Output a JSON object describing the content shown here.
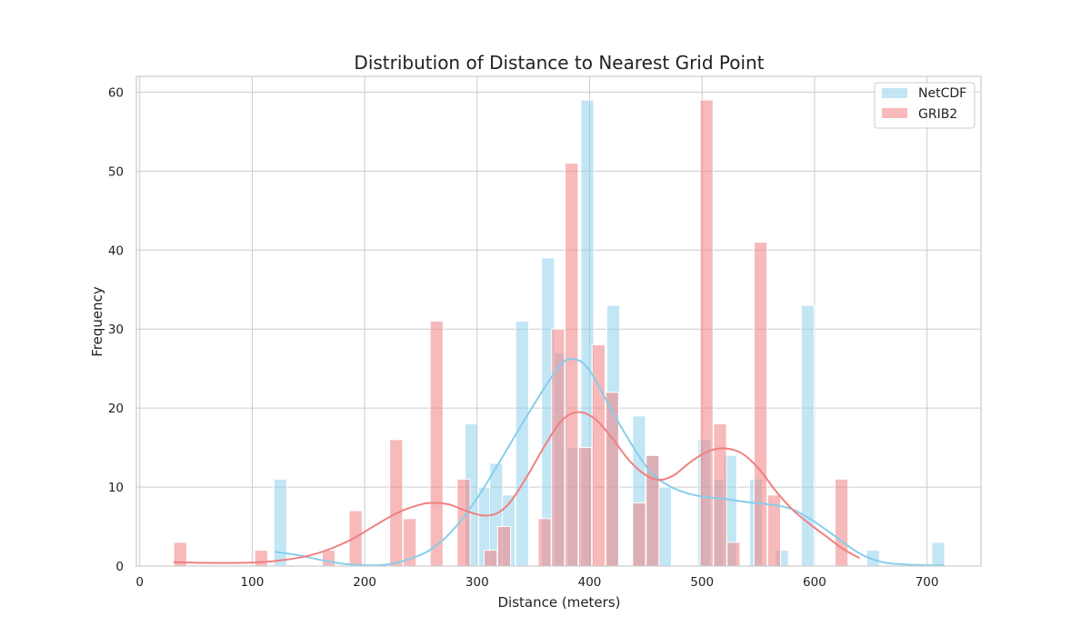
{
  "chart_data": {
    "type": "bar",
    "title": "Distribution of Distance to Nearest Grid Point",
    "xlabel": "Distance (meters)",
    "ylabel": "Frequency",
    "xlim": [
      -3,
      748
    ],
    "ylim": [
      0,
      62
    ],
    "xticks": [
      0,
      100,
      200,
      300,
      400,
      500,
      600,
      700
    ],
    "yticks": [
      0,
      10,
      20,
      30,
      40,
      50,
      60
    ],
    "grid": true,
    "legend_position": "top-right",
    "series": [
      {
        "name": "NetCDF",
        "color": "#87CEEB",
        "bin_width": 11.5,
        "bins": [
          {
            "x": 125,
            "count": 11
          },
          {
            "x": 295,
            "count": 18
          },
          {
            "x": 307,
            "count": 10
          },
          {
            "x": 317,
            "count": 13
          },
          {
            "x": 328,
            "count": 9
          },
          {
            "x": 340,
            "count": 31
          },
          {
            "x": 363,
            "count": 39
          },
          {
            "x": 374,
            "count": 27
          },
          {
            "x": 386,
            "count": 15
          },
          {
            "x": 398,
            "count": 59
          },
          {
            "x": 421,
            "count": 33
          },
          {
            "x": 444,
            "count": 19
          },
          {
            "x": 456,
            "count": 14
          },
          {
            "x": 467,
            "count": 10
          },
          {
            "x": 502,
            "count": 16
          },
          {
            "x": 514,
            "count": 11
          },
          {
            "x": 525,
            "count": 14
          },
          {
            "x": 548,
            "count": 11
          },
          {
            "x": 571,
            "count": 2
          },
          {
            "x": 594,
            "count": 33
          },
          {
            "x": 652,
            "count": 2
          },
          {
            "x": 710,
            "count": 3
          }
        ],
        "kde": [
          [
            120,
            1.8
          ],
          [
            140,
            1.4
          ],
          [
            160,
            0.8
          ],
          [
            180,
            0.3
          ],
          [
            200,
            0.1
          ],
          [
            220,
            0.2
          ],
          [
            240,
            0.9
          ],
          [
            260,
            2.2
          ],
          [
            280,
            4.8
          ],
          [
            300,
            8.6
          ],
          [
            320,
            13.2
          ],
          [
            340,
            18.0
          ],
          [
            360,
            22.6
          ],
          [
            375,
            25.6
          ],
          [
            385,
            26.2
          ],
          [
            395,
            25.6
          ],
          [
            405,
            23.6
          ],
          [
            420,
            19.6
          ],
          [
            440,
            14.8
          ],
          [
            455,
            11.8
          ],
          [
            470,
            10.2
          ],
          [
            485,
            9.3
          ],
          [
            500,
            8.8
          ],
          [
            520,
            8.5
          ],
          [
            540,
            8.1
          ],
          [
            560,
            7.8
          ],
          [
            580,
            7.2
          ],
          [
            600,
            5.6
          ],
          [
            620,
            3.6
          ],
          [
            640,
            1.6
          ],
          [
            660,
            0.5
          ],
          [
            680,
            0.2
          ],
          [
            700,
            0.1
          ],
          [
            715,
            0.1
          ]
        ]
      },
      {
        "name": "GRIB2",
        "color": "#F08080",
        "bin_width": 11.5,
        "bins": [
          {
            "x": 36,
            "count": 3
          },
          {
            "x": 108,
            "count": 2
          },
          {
            "x": 168,
            "count": 2
          },
          {
            "x": 192,
            "count": 7
          },
          {
            "x": 228,
            "count": 16
          },
          {
            "x": 240,
            "count": 6
          },
          {
            "x": 264,
            "count": 31
          },
          {
            "x": 288,
            "count": 11
          },
          {
            "x": 312,
            "count": 2
          },
          {
            "x": 324,
            "count": 5
          },
          {
            "x": 360,
            "count": 6
          },
          {
            "x": 372,
            "count": 30
          },
          {
            "x": 384,
            "count": 51
          },
          {
            "x": 396,
            "count": 15
          },
          {
            "x": 408,
            "count": 28
          },
          {
            "x": 420,
            "count": 22
          },
          {
            "x": 444,
            "count": 8
          },
          {
            "x": 456,
            "count": 14
          },
          {
            "x": 504,
            "count": 59
          },
          {
            "x": 516,
            "count": 18
          },
          {
            "x": 528,
            "count": 3
          },
          {
            "x": 552,
            "count": 41
          },
          {
            "x": 564,
            "count": 9
          },
          {
            "x": 624,
            "count": 11
          }
        ],
        "kde": [
          [
            30,
            0.5
          ],
          [
            60,
            0.4
          ],
          [
            90,
            0.4
          ],
          [
            110,
            0.5
          ],
          [
            130,
            0.8
          ],
          [
            150,
            1.3
          ],
          [
            170,
            2.2
          ],
          [
            190,
            3.5
          ],
          [
            210,
            5.2
          ],
          [
            230,
            6.8
          ],
          [
            250,
            7.8
          ],
          [
            262,
            8.0
          ],
          [
            275,
            7.8
          ],
          [
            290,
            7.0
          ],
          [
            305,
            6.4
          ],
          [
            318,
            6.7
          ],
          [
            330,
            8.2
          ],
          [
            345,
            11.5
          ],
          [
            360,
            15.2
          ],
          [
            375,
            18.4
          ],
          [
            390,
            19.5
          ],
          [
            405,
            18.6
          ],
          [
            420,
            16.2
          ],
          [
            435,
            13.4
          ],
          [
            450,
            11.5
          ],
          [
            462,
            10.9
          ],
          [
            475,
            11.5
          ],
          [
            490,
            13.2
          ],
          [
            505,
            14.5
          ],
          [
            520,
            14.9
          ],
          [
            535,
            14.3
          ],
          [
            550,
            12.4
          ],
          [
            565,
            9.6
          ],
          [
            580,
            7.2
          ],
          [
            595,
            5.4
          ],
          [
            610,
            3.8
          ],
          [
            625,
            2.2
          ],
          [
            640,
            1.0
          ]
        ]
      }
    ]
  }
}
